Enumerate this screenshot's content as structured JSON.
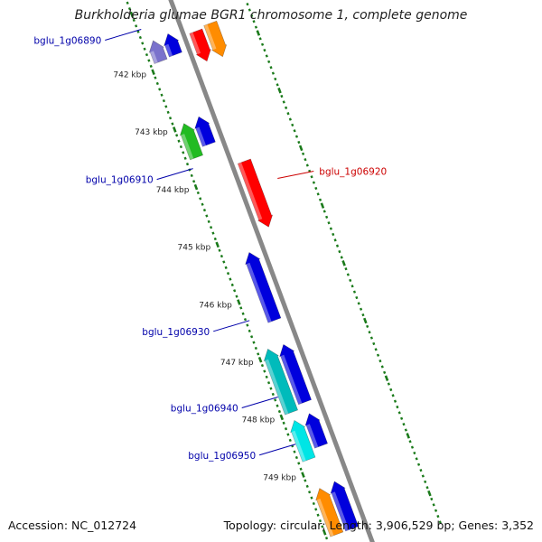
{
  "title": "Burkholderia glumae BGR1 chromosome 1, complete genome",
  "accession": "Accession: NC_012724",
  "summary": "Topology: circular; Length: 3,906,529 bp; Genes: 3,352",
  "colors": {
    "backbone": "#888888",
    "tick": "#1a7a1a",
    "label_blue": "#0000aa",
    "label_red": "#cc0000"
  },
  "scale_ticks": [
    {
      "label": "742 kbp",
      "kbp": 742
    },
    {
      "label": "743 kbp",
      "kbp": 743
    },
    {
      "label": "744 kbp",
      "kbp": 744
    },
    {
      "label": "745 kbp",
      "kbp": 745
    },
    {
      "label": "746 kbp",
      "kbp": 746
    },
    {
      "label": "747 kbp",
      "kbp": 747
    },
    {
      "label": "748 kbp",
      "kbp": 748
    },
    {
      "label": "749 kbp",
      "kbp": 749
    }
  ],
  "genes": [
    {
      "strand": "-",
      "lane": 2,
      "start_kbp": 741.52,
      "end_kbp": 741.88,
      "color": "#7a72cc"
    },
    {
      "strand": "-",
      "lane": 1,
      "start_kbp": 741.5,
      "end_kbp": 741.86,
      "color": "#0000dd"
    },
    {
      "strand": "+",
      "lane": 1,
      "start_kbp": 741.62,
      "end_kbp": 742.14,
      "color": "#ff0000"
    },
    {
      "strand": "+",
      "lane": 2,
      "start_kbp": 741.58,
      "end_kbp": 742.16,
      "color": "#ff8c00"
    },
    {
      "strand": "-",
      "lane": 2,
      "start_kbp": 742.96,
      "end_kbp": 743.55,
      "color": "#22bb22"
    },
    {
      "strand": "-",
      "lane": 1,
      "start_kbp": 742.94,
      "end_kbp": 743.42,
      "color": "#0000dd"
    },
    {
      "strand": "+",
      "lane": 1,
      "start_kbp": 743.88,
      "end_kbp": 745.02,
      "color": "#ff0000"
    },
    {
      "strand": "-",
      "lane": 1,
      "start_kbp": 745.3,
      "end_kbp": 746.48,
      "color": "#0000dd"
    },
    {
      "strand": "-",
      "lane": 2,
      "start_kbp": 746.88,
      "end_kbp": 747.98,
      "color": "#00bbbb"
    },
    {
      "strand": "-",
      "lane": 1,
      "start_kbp": 746.9,
      "end_kbp": 747.9,
      "color": "#0000dd"
    },
    {
      "strand": "-",
      "lane": 2,
      "start_kbp": 748.12,
      "end_kbp": 748.8,
      "color": "#00e5e5"
    },
    {
      "strand": "-",
      "lane": 1,
      "start_kbp": 748.1,
      "end_kbp": 748.66,
      "color": "#0000dd"
    },
    {
      "strand": "-",
      "lane": 2,
      "start_kbp": 749.3,
      "end_kbp": 750.1,
      "color": "#ff8c00"
    },
    {
      "strand": "-",
      "lane": 1,
      "start_kbp": 749.28,
      "end_kbp": 750.1,
      "color": "#0000dd"
    }
  ],
  "gene_labels": [
    {
      "text": "bglu_1g06890",
      "color": "#0000aa",
      "kbp": 741.28
    },
    {
      "text": "bglu_1g06910",
      "color": "#0000aa",
      "kbp": 743.7
    },
    {
      "text": "bglu_1g06920",
      "color": "#cc0000",
      "kbp": 744.33
    },
    {
      "text": "bglu_1g06930",
      "color": "#0000aa",
      "kbp": 746.34
    },
    {
      "text": "bglu_1g06940",
      "color": "#0000aa",
      "kbp": 747.67
    },
    {
      "text": "bglu_1g06950",
      "color": "#0000aa",
      "kbp": 748.49
    }
  ]
}
